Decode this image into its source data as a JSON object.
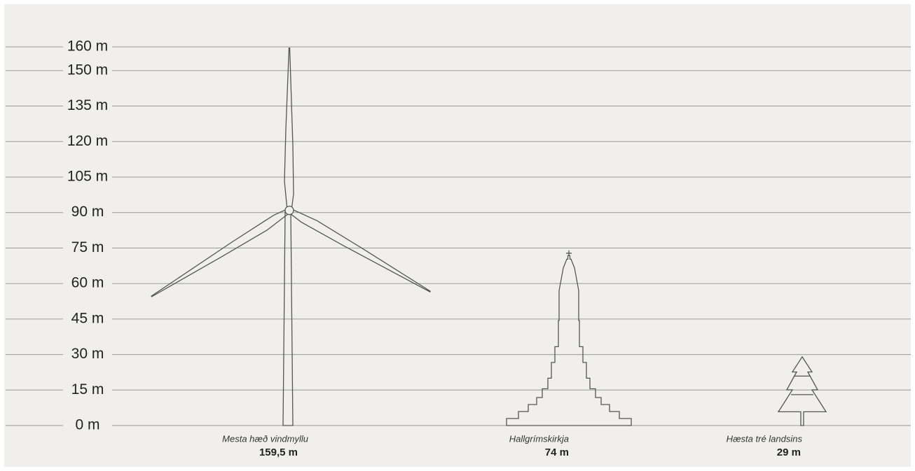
{
  "chart_data": {
    "type": "silhouette",
    "categories": [
      "Mesta hæð vindmyllu",
      "Hallgrímskirkja",
      "Hæsta tré landsins"
    ],
    "values": [
      159.5,
      74,
      29
    ],
    "value_labels": [
      "159,5 m",
      "74 m",
      "29 m"
    ],
    "color": "#555555",
    "ylim": [
      0,
      160
    ],
    "yticks": [
      {
        "value": 0,
        "label": "0 m"
      },
      {
        "value": 15,
        "label": "15 m"
      },
      {
        "value": 30,
        "label": "30 m"
      },
      {
        "value": 45,
        "label": "45 m"
      },
      {
        "value": 60,
        "label": "60 m"
      },
      {
        "value": 75,
        "label": "75 m"
      },
      {
        "value": 90,
        "label": "90 m"
      },
      {
        "value": 105,
        "label": "105 m"
      },
      {
        "value": 120,
        "label": "120 m"
      },
      {
        "value": 135,
        "label": "135 m"
      },
      {
        "value": 150,
        "label": "150 m"
      },
      {
        "value": 160,
        "label": "160 m"
      }
    ],
    "grid": true
  }
}
